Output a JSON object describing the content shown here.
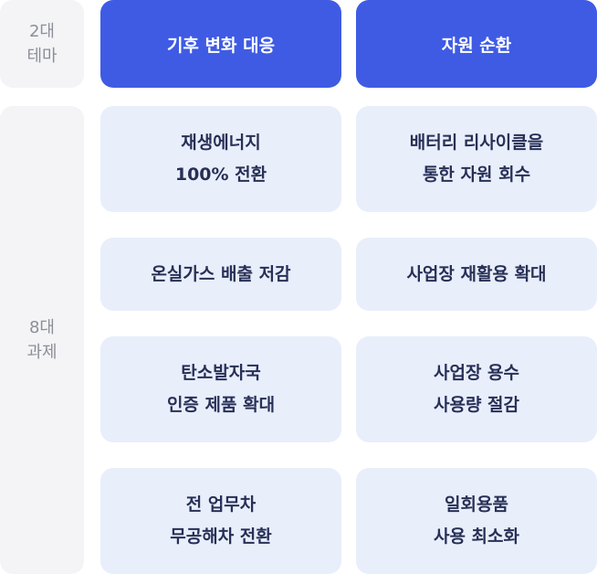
{
  "labels": {
    "themes": [
      "2대",
      "테마"
    ],
    "tasks": [
      "8대",
      "과제"
    ]
  },
  "themes": [
    {
      "label": "기후 변화 대응"
    },
    {
      "label": "자원 순환"
    }
  ],
  "tasks": {
    "left": [
      {
        "lines": [
          "재생에너지",
          "100% 전환"
        ]
      },
      {
        "lines": [
          "온실가스 배출 저감"
        ]
      },
      {
        "lines": [
          "탄소발자국",
          "인증 제품 확대"
        ]
      },
      {
        "lines": [
          "전 업무차",
          "무공해차 전환"
        ]
      }
    ],
    "right": [
      {
        "lines": [
          "배터리 리사이클을",
          "통한 자원 회수"
        ]
      },
      {
        "lines": [
          "사업장 재활용 확대"
        ]
      },
      {
        "lines": [
          "사업장 용수",
          "사용량 절감"
        ]
      },
      {
        "lines": [
          "일회용품",
          "사용 최소화"
        ]
      }
    ]
  },
  "colors": {
    "theme_bg": "#3f5be4",
    "task_bg": "#e9eefb",
    "label_bg": "#f4f4f6"
  }
}
